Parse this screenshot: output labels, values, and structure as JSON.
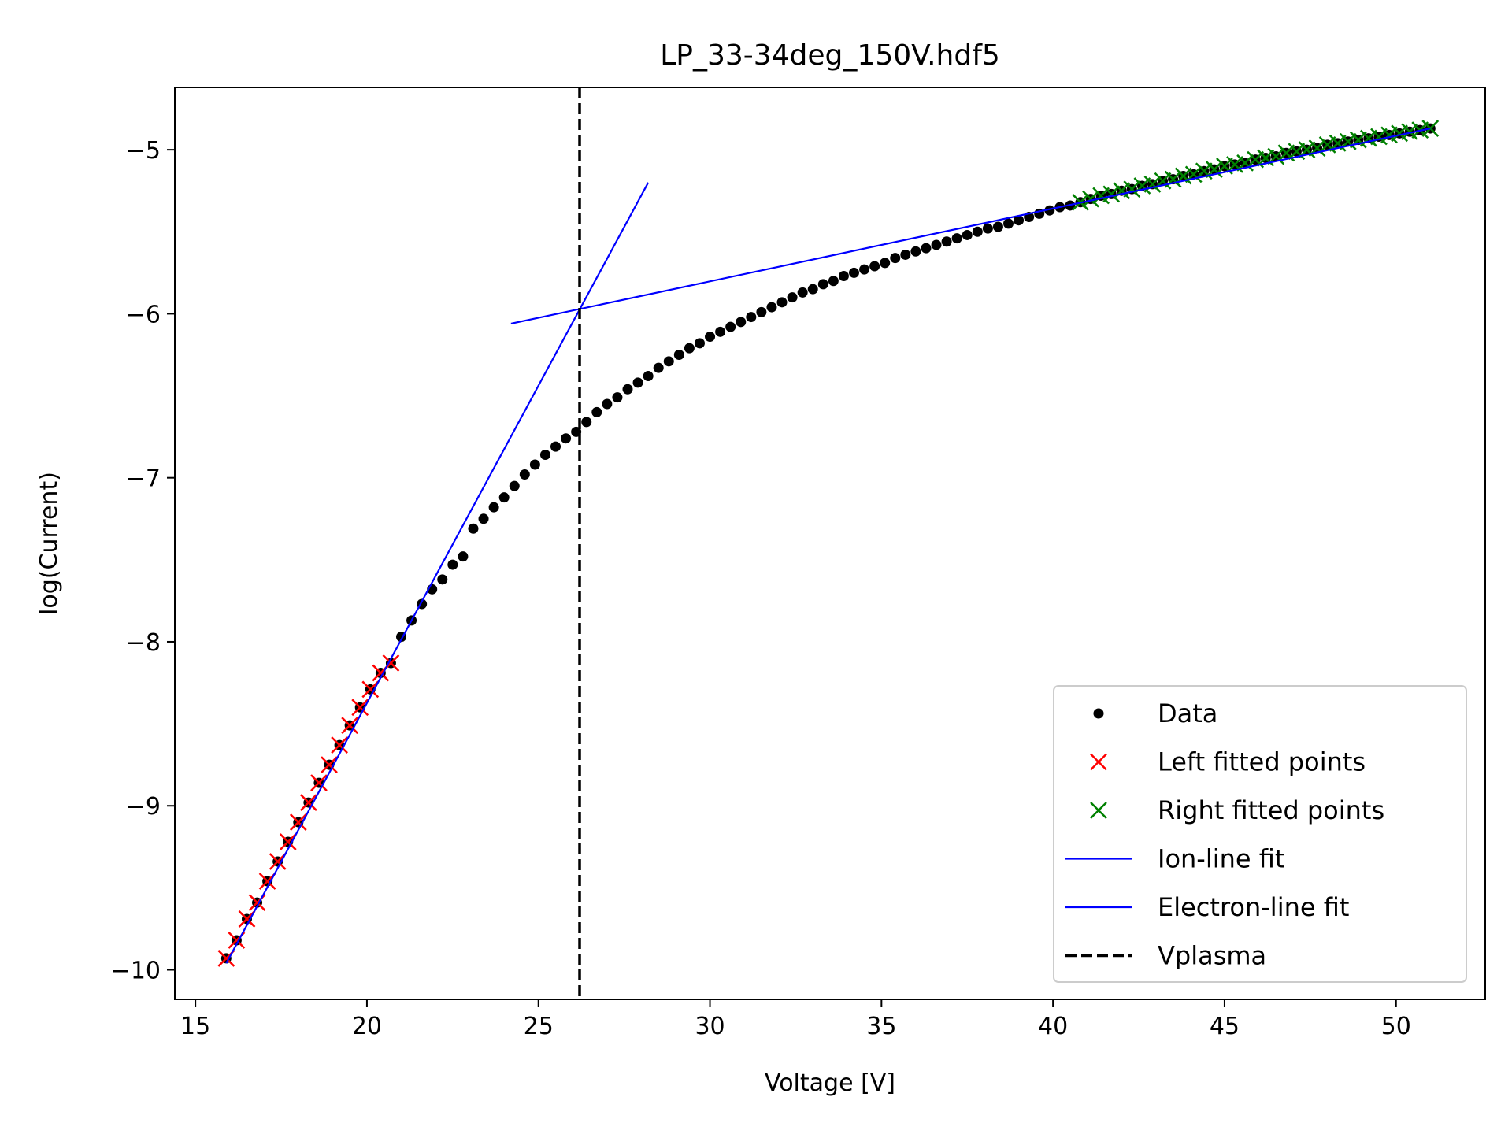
{
  "chart_data": {
    "type": "scatter",
    "title": "LP_33-34deg_150V.hdf5",
    "xlabel": "Voltage [V]",
    "ylabel": "log(Current)",
    "xlim": [
      14.4,
      52.6
    ],
    "ylim": [
      -10.18,
      -4.62
    ],
    "xticks": [
      15,
      20,
      25,
      30,
      35,
      40,
      45,
      50
    ],
    "yticks": [
      -10,
      -9,
      -8,
      -7,
      -6,
      -5
    ],
    "ytick_labels": [
      "−10",
      "−9",
      "−8",
      "−7",
      "−6",
      "−5"
    ],
    "grid": false,
    "legend_position": "lower-right",
    "colors": {
      "data": "#000000",
      "left_fit": "#ff0000",
      "right_fit": "#008000",
      "ion_line": "#0000ff",
      "electron_line": "#0000ff",
      "vplasma": "#000000"
    },
    "legend": [
      {
        "label": "Data",
        "marker": "dot",
        "color": "#000000"
      },
      {
        "label": "Left fitted points",
        "marker": "x",
        "color": "#ff0000"
      },
      {
        "label": "Right fitted points",
        "marker": "x",
        "color": "#008000"
      },
      {
        "label": "Ion-line fit",
        "marker": "line",
        "color": "#0000ff"
      },
      {
        "label": "Electron-line fit",
        "marker": "line",
        "color": "#0000ff"
      },
      {
        "label": "Vplasma",
        "marker": "dashed",
        "color": "#000000"
      }
    ],
    "data_points": {
      "x": [
        15.9,
        16.2,
        16.5,
        16.8,
        17.1,
        17.4,
        17.7,
        18.0,
        18.3,
        18.6,
        18.9,
        19.2,
        19.5,
        19.8,
        20.1,
        20.4,
        20.7,
        21.0,
        21.3,
        21.6,
        21.9,
        22.2,
        22.5,
        22.8,
        23.1,
        23.4,
        23.7,
        24.0,
        24.3,
        24.6,
        24.9,
        25.2,
        25.5,
        25.8,
        26.1,
        26.4,
        26.7,
        27.0,
        27.3,
        27.6,
        27.9,
        28.2,
        28.5,
        28.8,
        29.1,
        29.4,
        29.7,
        30.0,
        30.3,
        30.6,
        30.9,
        31.2,
        31.5,
        31.8,
        32.1,
        32.4,
        32.7,
        33.0,
        33.3,
        33.6,
        33.9,
        34.2,
        34.5,
        34.8,
        35.1,
        35.4,
        35.7,
        36.0,
        36.3,
        36.6,
        36.9,
        37.2,
        37.5,
        37.8,
        38.1,
        38.4,
        38.7,
        39.0,
        39.3,
        39.6,
        39.9,
        40.2,
        40.5,
        40.8,
        41.1,
        41.4,
        41.7,
        42.0,
        42.3,
        42.6,
        42.9,
        43.2,
        43.5,
        43.8,
        44.1,
        44.4,
        44.7,
        45.0,
        45.3,
        45.6,
        45.9,
        46.2,
        46.5,
        46.8,
        47.1,
        47.4,
        47.7,
        48.0,
        48.3,
        48.6,
        48.9,
        49.2,
        49.5,
        49.8,
        50.1,
        50.4,
        50.7,
        51.0
      ],
      "y": [
        -9.93,
        -9.82,
        -9.69,
        -9.59,
        -9.46,
        -9.34,
        -9.22,
        -9.1,
        -8.98,
        -8.86,
        -8.75,
        -8.63,
        -8.51,
        -8.4,
        -8.29,
        -8.19,
        -8.13,
        -7.97,
        -7.87,
        -7.77,
        -7.68,
        -7.62,
        -7.53,
        -7.48,
        -7.31,
        -7.25,
        -7.18,
        -7.12,
        -7.05,
        -6.98,
        -6.92,
        -6.86,
        -6.81,
        -6.76,
        -6.72,
        -6.66,
        -6.6,
        -6.55,
        -6.51,
        -6.46,
        -6.42,
        -6.38,
        -6.33,
        -6.29,
        -6.25,
        -6.21,
        -6.18,
        -6.14,
        -6.11,
        -6.08,
        -6.05,
        -6.02,
        -5.99,
        -5.96,
        -5.93,
        -5.9,
        -5.87,
        -5.85,
        -5.82,
        -5.8,
        -5.77,
        -5.75,
        -5.73,
        -5.71,
        -5.69,
        -5.66,
        -5.64,
        -5.62,
        -5.6,
        -5.58,
        -5.56,
        -5.54,
        -5.52,
        -5.5,
        -5.48,
        -5.47,
        -5.45,
        -5.43,
        -5.41,
        -5.39,
        -5.37,
        -5.35,
        -5.34,
        -5.32,
        -5.3,
        -5.28,
        -5.27,
        -5.25,
        -5.24,
        -5.22,
        -5.21,
        -5.19,
        -5.18,
        -5.16,
        -5.15,
        -5.13,
        -5.12,
        -5.1,
        -5.09,
        -5.08,
        -5.06,
        -5.05,
        -5.04,
        -5.02,
        -5.01,
        -5.0,
        -4.99,
        -4.97,
        -4.96,
        -4.95,
        -4.94,
        -4.93,
        -4.92,
        -4.91,
        -4.9,
        -4.89,
        -4.88,
        -4.87
      ]
    },
    "left_fitted_points": {
      "x": [
        15.9,
        16.2,
        16.5,
        16.8,
        17.1,
        17.4,
        17.7,
        18.0,
        18.3,
        18.6,
        18.9,
        19.2,
        19.5,
        19.8,
        20.1,
        20.4,
        20.7
      ],
      "y": [
        -9.93,
        -9.82,
        -9.69,
        -9.59,
        -9.46,
        -9.34,
        -9.22,
        -9.1,
        -8.98,
        -8.86,
        -8.75,
        -8.63,
        -8.51,
        -8.4,
        -8.29,
        -8.19,
        -8.13
      ]
    },
    "right_fitted_points": {
      "x": [
        40.8,
        41.1,
        41.4,
        41.7,
        42.0,
        42.3,
        42.6,
        42.9,
        43.2,
        43.5,
        43.8,
        44.1,
        44.4,
        44.7,
        45.0,
        45.3,
        45.6,
        45.9,
        46.2,
        46.5,
        46.8,
        47.1,
        47.4,
        47.7,
        48.0,
        48.3,
        48.6,
        48.9,
        49.2,
        49.5,
        49.8,
        50.1,
        50.4,
        50.7,
        51.0
      ],
      "y": [
        -5.32,
        -5.3,
        -5.28,
        -5.27,
        -5.25,
        -5.24,
        -5.22,
        -5.21,
        -5.19,
        -5.18,
        -5.16,
        -5.15,
        -5.13,
        -5.12,
        -5.1,
        -5.09,
        -5.08,
        -5.06,
        -5.05,
        -5.04,
        -5.02,
        -5.01,
        -5.0,
        -4.99,
        -4.97,
        -4.96,
        -4.95,
        -4.94,
        -4.93,
        -4.92,
        -4.91,
        -4.9,
        -4.89,
        -4.88,
        -4.87
      ]
    },
    "ion_line_fit": {
      "x": [
        15.9,
        28.2
      ],
      "y": [
        -9.96,
        -5.2
      ]
    },
    "electron_line_fit": {
      "x": [
        24.2,
        51.0
      ],
      "y": [
        -6.06,
        -4.87
      ]
    },
    "vplasma": {
      "x": 26.2
    }
  }
}
